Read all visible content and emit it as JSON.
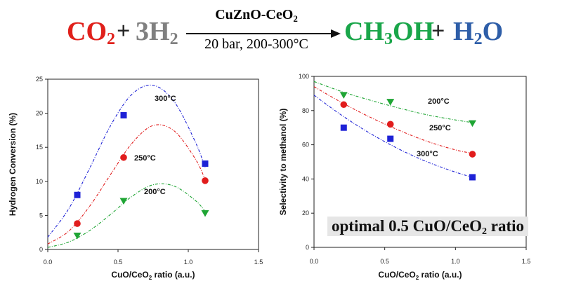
{
  "equation": {
    "reactant1": {
      "main": "CO",
      "sub": "2",
      "color": "#e0201b"
    },
    "plus1": "+",
    "reactant2": {
      "coef": "3H",
      "sub": "2",
      "color": "#808080"
    },
    "catalyst": {
      "main": "CuZnO-CeO",
      "sub": "2"
    },
    "conditions": "20 bar, 200-300°C",
    "product1": {
      "main": "CH",
      "sub": "3",
      "rest": "OH",
      "color": "#1aa64a"
    },
    "plus2": "+",
    "product2": {
      "main": "H",
      "sub": "2",
      "rest": "O",
      "color": "#2e5ea8"
    }
  },
  "annotation": {
    "text": "optimal 0.5 CuO/CeO",
    "sub": "2",
    "rest": " ratio"
  },
  "colors": {
    "t300": "#1e22d6",
    "t250": "#e11c1c",
    "t200": "#1fa534"
  },
  "chart_data": [
    {
      "type": "scatter",
      "id": "conversion",
      "xlabel": "CuO/CeO2 ratio (a.u.)",
      "xlabel_parts": {
        "a": "CuO/CeO",
        "sub": "2",
        "b": " ratio (a.u.)"
      },
      "ylabel": "Hydrogen Conversion (%)",
      "xlim": [
        0,
        1.5
      ],
      "ylim": [
        0,
        25
      ],
      "xticks": [
        0.0,
        0.5,
        1.0,
        1.5
      ],
      "xtick_labels": [
        "0.0",
        "0.5",
        "1.0",
        "1.5"
      ],
      "yticks": [
        0,
        5,
        10,
        15,
        20,
        25
      ],
      "ytick_labels": [
        "0",
        "5",
        "10",
        "15",
        "20",
        "25"
      ],
      "series": [
        {
          "name": "300°C",
          "label": "300°C",
          "marker": "square",
          "color": "#1e22d6",
          "x": [
            0.21,
            0.54,
            1.12
          ],
          "y": [
            8.0,
            19.7,
            12.6
          ],
          "fit_x": [
            0.0,
            0.15,
            0.3,
            0.45,
            0.6,
            0.75,
            0.9,
            1.05,
            1.12
          ],
          "fit_y": [
            1.8,
            6.0,
            12.0,
            18.3,
            22.8,
            24.1,
            21.7,
            15.8,
            12.0
          ]
        },
        {
          "name": "250°C",
          "label": "250°C",
          "marker": "circle",
          "color": "#e11c1c",
          "x": [
            0.21,
            0.54,
            1.12
          ],
          "y": [
            3.8,
            13.5,
            10.1
          ],
          "fit_x": [
            0.0,
            0.15,
            0.3,
            0.45,
            0.6,
            0.75,
            0.9,
            1.05,
            1.12
          ],
          "fit_y": [
            0.8,
            2.7,
            6.4,
            11.1,
            15.6,
            18.2,
            17.4,
            13.3,
            10.3
          ]
        },
        {
          "name": "200°C",
          "label": "200°C",
          "marker": "triangle-down",
          "color": "#1fa534",
          "x": [
            0.21,
            0.54,
            1.12
          ],
          "y": [
            2.0,
            7.1,
            5.3
          ],
          "fit_x": [
            0.0,
            0.15,
            0.3,
            0.45,
            0.6,
            0.75,
            0.9,
            1.05,
            1.12
          ],
          "fit_y": [
            0.3,
            1.1,
            2.8,
            5.2,
            7.8,
            9.5,
            9.3,
            7.2,
            5.6
          ]
        }
      ]
    },
    {
      "type": "scatter",
      "id": "selectivity",
      "xlabel": "CuO/CeO2 ratio  (a.u.)",
      "xlabel_parts": {
        "a": "CuO/CeO",
        "sub": "2",
        "b": " ratio  (a.u.)"
      },
      "ylabel": "Selectivity to methanol (%)",
      "xlim": [
        0,
        1.5
      ],
      "ylim": [
        0,
        100
      ],
      "xticks": [
        0.0,
        0.5,
        1.0,
        1.5
      ],
      "xtick_labels": [
        "0.0",
        "0.5",
        "1.0",
        "1.5"
      ],
      "yticks": [
        0,
        20,
        40,
        60,
        80,
        100
      ],
      "ytick_labels": [
        "0",
        "20",
        "40",
        "60",
        "80",
        "100"
      ],
      "series": [
        {
          "name": "200°C",
          "label": "200°C",
          "marker": "triangle-down",
          "color": "#1fa534",
          "x": [
            0.21,
            0.54,
            1.12
          ],
          "y": [
            89.0,
            85.0,
            72.5
          ],
          "fit_x": [
            0.0,
            0.2,
            0.4,
            0.6,
            0.8,
            1.0,
            1.12
          ],
          "fit_y": [
            97.0,
            91.0,
            86.0,
            81.5,
            77.5,
            74.5,
            73.0
          ]
        },
        {
          "name": "250°C",
          "label": "250°C",
          "marker": "circle",
          "color": "#e11c1c",
          "x": [
            0.21,
            0.54,
            1.12
          ],
          "y": [
            83.5,
            72.0,
            54.5
          ],
          "fit_x": [
            0.0,
            0.2,
            0.4,
            0.6,
            0.8,
            1.0,
            1.12
          ],
          "fit_y": [
            94.0,
            84.5,
            76.0,
            68.5,
            62.0,
            57.0,
            55.0
          ]
        },
        {
          "name": "300°C",
          "label": "300°C",
          "marker": "square",
          "color": "#1e22d6",
          "x": [
            0.21,
            0.54,
            1.12
          ],
          "y": [
            70.0,
            63.5,
            41.0
          ],
          "fit_x": [
            0.0,
            0.2,
            0.4,
            0.6,
            0.8,
            1.0,
            1.12
          ],
          "fit_y": [
            89.0,
            77.0,
            66.5,
            57.5,
            50.0,
            44.0,
            41.0
          ]
        }
      ]
    }
  ]
}
